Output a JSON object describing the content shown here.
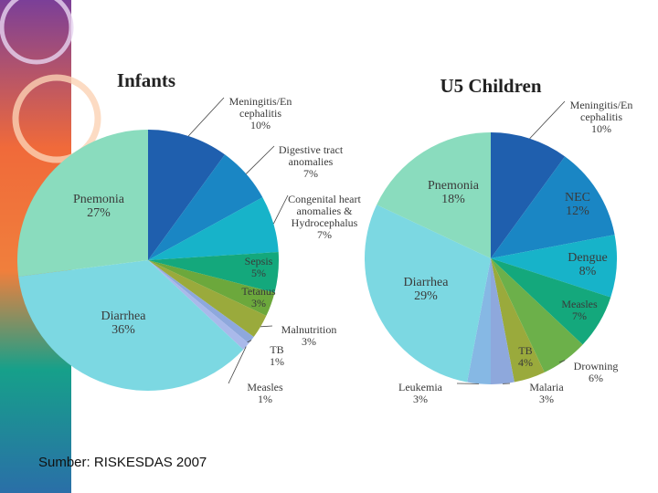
{
  "chart_data": [
    {
      "type": "pie",
      "title": "Infants",
      "categories": [
        "Meningitis/En\ncephalitis",
        "Digestive tract\nanomalies",
        "Congenital heart\nanomalies &\nHydrocephalus",
        "Sepsis",
        "Tetanus",
        "Malnutrition",
        "TB",
        "Measles",
        "Diarrhea",
        "Pnemonia"
      ],
      "values": [
        10,
        7,
        7,
        5,
        3,
        3,
        1,
        1,
        36,
        27
      ],
      "value_labels": [
        "10%",
        "7%",
        "7%",
        "5%",
        "3%",
        "3%",
        "1%",
        "1%",
        "36%",
        "27%"
      ],
      "colors": [
        "#1f5fae",
        "#1a86c4",
        "#17b3c9",
        "#14a87c",
        "#6ca83c",
        "#9aaa3c",
        "#8ea8dc",
        "#a9b9ea",
        "#7cd8e2",
        "#8adcbe"
      ]
    },
    {
      "type": "pie",
      "title": "U5 Children",
      "categories": [
        "Meningitis/En\ncephalitis",
        "NEC",
        "Dengue",
        "Measles",
        "Drowning",
        "TB",
        "Malaria",
        "Leukemia",
        "Diarrhea",
        "Pnemonia"
      ],
      "values": [
        10,
        12,
        8,
        7,
        6,
        4,
        3,
        3,
        29,
        18
      ],
      "value_labels": [
        "10%",
        "12%",
        "8%",
        "7%",
        "6%",
        "4%",
        "3%",
        "3%",
        "29%",
        "18%"
      ],
      "colors": [
        "#1f5fae",
        "#1a86c4",
        "#17b3c9",
        "#14a87c",
        "#6cb04a",
        "#9aaa3c",
        "#8ea8dc",
        "#86b8e4",
        "#7cd8e2",
        "#8adcbe"
      ]
    }
  ],
  "source": "Sumber: RISKESDAS 2007"
}
